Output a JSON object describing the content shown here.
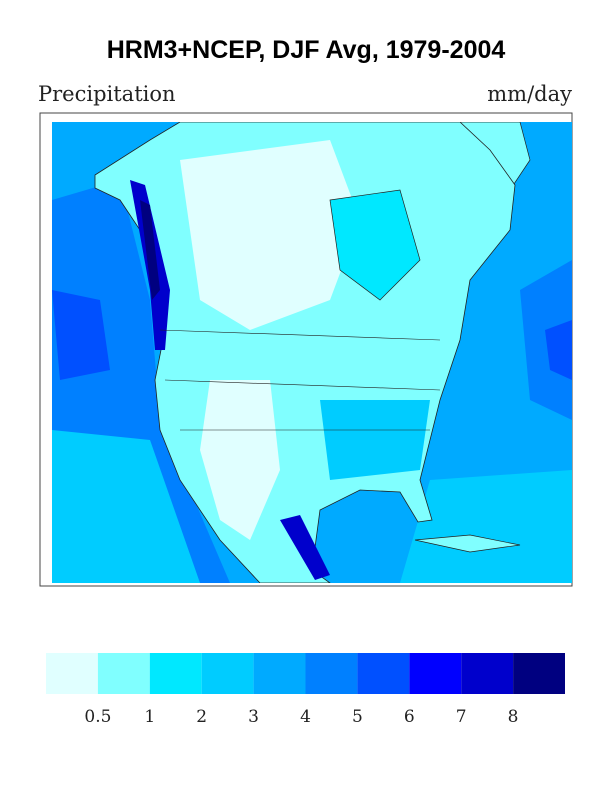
{
  "header": {
    "title": "HRM3+NCEP, DJF Avg, 1979-2004",
    "left_label": "Precipitation",
    "right_label": "mm/day"
  },
  "colorbar": {
    "colors": [
      "#e0ffff",
      "#80ffff",
      "#00e8ff",
      "#00ccff",
      "#00aaff",
      "#0080ff",
      "#0050ff",
      "#0000ff",
      "#0000cc",
      "#000080"
    ],
    "ticks": [
      0.5,
      1,
      2,
      3,
      4,
      5,
      6,
      7,
      8
    ]
  }
}
